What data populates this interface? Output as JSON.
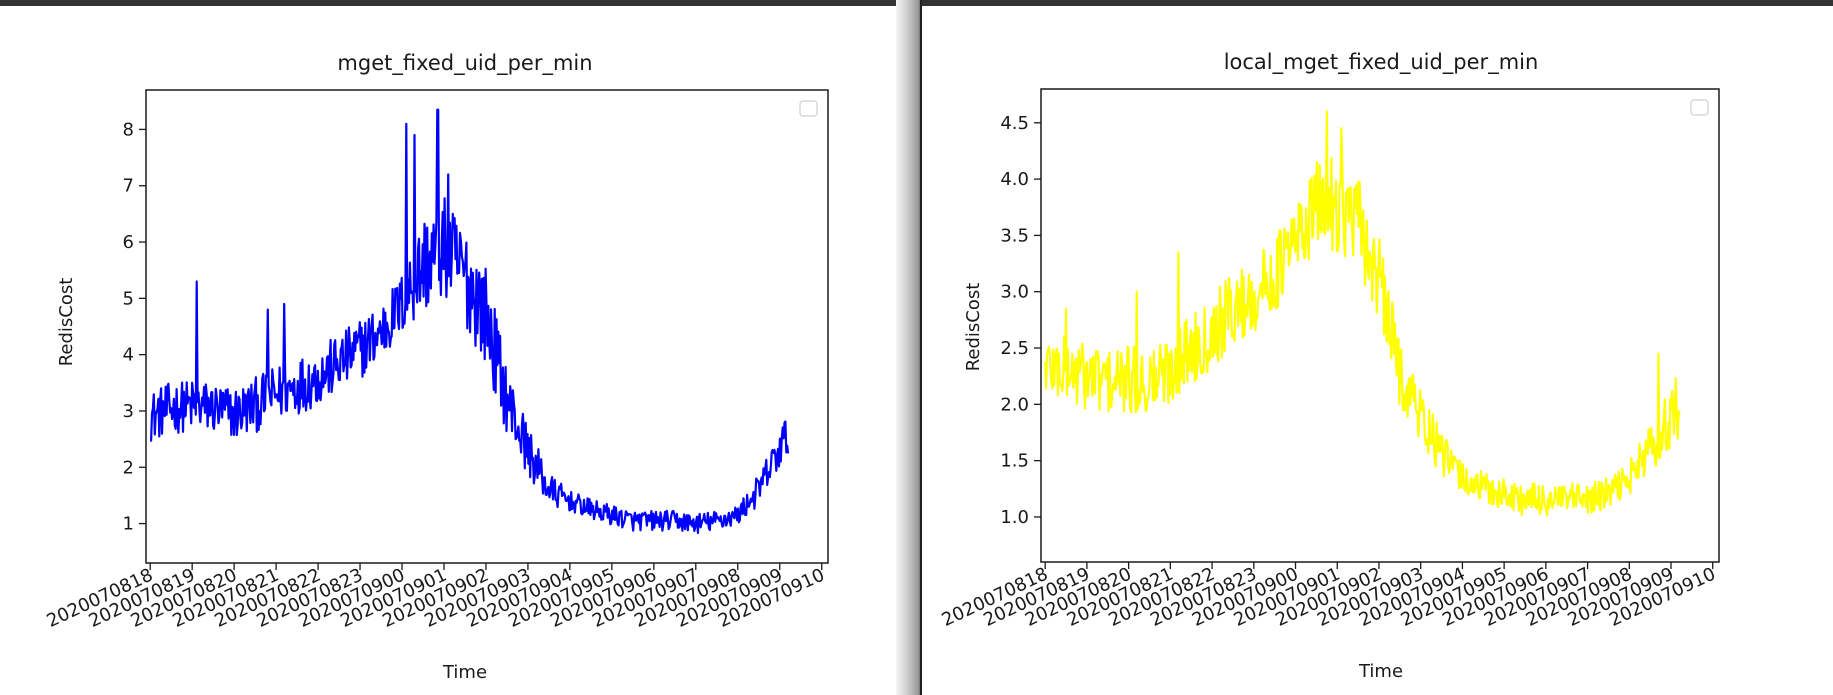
{
  "charts": [
    {
      "id": "left",
      "type": "line",
      "title": "mget_fixed_uid_per_min",
      "xlabel": "Time",
      "ylabel": "RedisCost",
      "color": "#0000ff",
      "categories": [
        "2020070818",
        "2020070819",
        "2020070820",
        "2020070821",
        "2020070822",
        "2020070823",
        "2020070900",
        "2020070901",
        "2020070902",
        "2020070903",
        "2020070904",
        "2020070905",
        "2020070906",
        "2020070907",
        "2020070908",
        "2020070909",
        "2020070910"
      ],
      "yticks": [
        1,
        2,
        3,
        4,
        5,
        6,
        7,
        8
      ],
      "ylim": [
        0.3,
        8.7
      ],
      "xlim": [
        -0.1,
        16.15
      ],
      "x_end": 15.2,
      "profile": [
        [
          0,
          2.9
        ],
        [
          0.5,
          3.05
        ],
        [
          1,
          3.1
        ],
        [
          1.5,
          3.05
        ],
        [
          2,
          2.95
        ],
        [
          2.5,
          3.1
        ],
        [
          3,
          3.3
        ],
        [
          3.5,
          3.45
        ],
        [
          4,
          3.6
        ],
        [
          4.5,
          3.85
        ],
        [
          5,
          4.1
        ],
        [
          5.5,
          4.4
        ],
        [
          6,
          4.9
        ],
        [
          6.5,
          5.6
        ],
        [
          7,
          5.9
        ],
        [
          7.5,
          5.4
        ],
        [
          8,
          4.7
        ],
        [
          8.5,
          3.2
        ],
        [
          9,
          2.3
        ],
        [
          9.5,
          1.6
        ],
        [
          10,
          1.4
        ],
        [
          10.5,
          1.25
        ],
        [
          11,
          1.15
        ],
        [
          11.5,
          1.05
        ],
        [
          12,
          1.05
        ],
        [
          12.5,
          1.05
        ],
        [
          13,
          1.0
        ],
        [
          13.5,
          1.05
        ],
        [
          14,
          1.15
        ],
        [
          14.5,
          1.6
        ],
        [
          15.2,
          2.6
        ]
      ],
      "noise": [
        [
          0,
          0.45
        ],
        [
          6,
          0.55
        ],
        [
          6.5,
          0.9
        ],
        [
          8,
          0.9
        ],
        [
          8.5,
          0.6
        ],
        [
          9.5,
          0.3
        ],
        [
          10,
          0.18
        ],
        [
          14,
          0.18
        ],
        [
          15.2,
          0.4
        ]
      ],
      "spikes": [
        [
          1.1,
          5.3
        ],
        [
          6.1,
          8.1
        ],
        [
          6.3,
          7.9
        ],
        [
          6.85,
          8.35
        ],
        [
          7.1,
          7.2
        ],
        [
          2.8,
          4.8
        ],
        [
          3.2,
          4.9
        ]
      ],
      "legend": "top-right, empty",
      "grid": false
    },
    {
      "id": "right",
      "type": "line",
      "title": "local_mget_fixed_uid_per_min",
      "xlabel": "Time",
      "ylabel": "RedisCost",
      "color": "#ffff00",
      "categories": [
        "2020070818",
        "2020070819",
        "2020070820",
        "2020070821",
        "2020070822",
        "2020070823",
        "2020070900",
        "2020070901",
        "2020070902",
        "2020070903",
        "2020070904",
        "2020070905",
        "2020070906",
        "2020070907",
        "2020070908",
        "2020070909",
        "2020070910"
      ],
      "yticks": [
        1.0,
        1.5,
        2.0,
        2.5,
        3.0,
        3.5,
        4.0,
        4.5
      ],
      "ylim": [
        0.6,
        4.8
      ],
      "xlim": [
        -0.1,
        16.15
      ],
      "x_end": 15.2,
      "profile": [
        [
          0,
          2.35
        ],
        [
          0.5,
          2.3
        ],
        [
          1,
          2.25
        ],
        [
          1.5,
          2.2
        ],
        [
          2,
          2.2
        ],
        [
          2.5,
          2.2
        ],
        [
          3,
          2.3
        ],
        [
          3.5,
          2.5
        ],
        [
          4,
          2.65
        ],
        [
          4.5,
          2.85
        ],
        [
          5,
          2.95
        ],
        [
          5.5,
          3.15
        ],
        [
          6,
          3.45
        ],
        [
          6.5,
          3.75
        ],
        [
          7,
          3.8
        ],
        [
          7.5,
          3.6
        ],
        [
          8,
          3.1
        ],
        [
          8.5,
          2.3
        ],
        [
          9,
          1.9
        ],
        [
          9.5,
          1.55
        ],
        [
          10,
          1.35
        ],
        [
          10.5,
          1.25
        ],
        [
          11,
          1.2
        ],
        [
          11.5,
          1.15
        ],
        [
          12,
          1.15
        ],
        [
          12.5,
          1.15
        ],
        [
          13,
          1.15
        ],
        [
          13.5,
          1.2
        ],
        [
          14,
          1.35
        ],
        [
          14.5,
          1.6
        ],
        [
          15.2,
          2.0
        ]
      ],
      "noise": [
        [
          0,
          0.3
        ],
        [
          6,
          0.35
        ],
        [
          7,
          0.45
        ],
        [
          8,
          0.4
        ],
        [
          9,
          0.25
        ],
        [
          10,
          0.15
        ],
        [
          14,
          0.15
        ],
        [
          15.2,
          0.3
        ]
      ],
      "spikes": [
        [
          6.75,
          4.6
        ],
        [
          7.1,
          4.45
        ],
        [
          3.2,
          3.35
        ],
        [
          2.2,
          3.0
        ],
        [
          14.7,
          2.45
        ],
        [
          0.5,
          2.85
        ]
      ],
      "legend": "top-right, empty",
      "grid": false
    }
  ]
}
